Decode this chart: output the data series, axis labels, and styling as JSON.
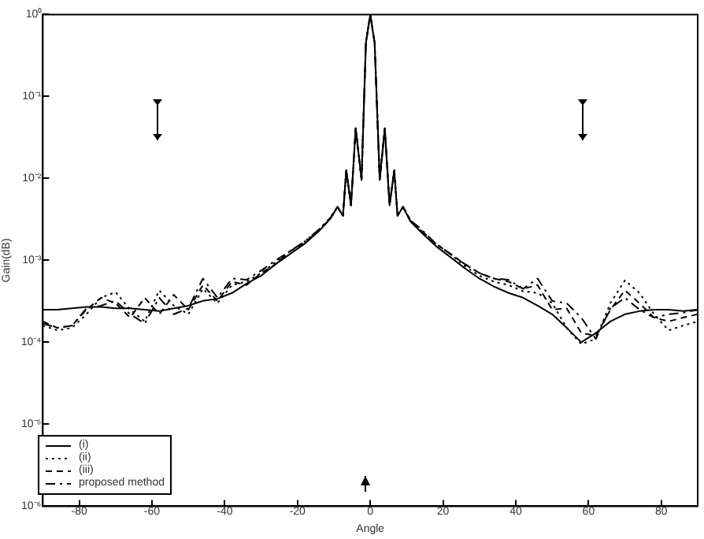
{
  "chart_data": {
    "type": "line",
    "xlabel": "Angle",
    "ylabel": "Gain(dB)",
    "log": "y",
    "xlim": [
      -90,
      90
    ],
    "xticks": [
      -80,
      -60,
      -40,
      -20,
      0,
      20,
      40,
      60,
      80
    ],
    "ylim": [
      1e-06,
      1
    ],
    "yticks": [
      {
        "value": 1e-06,
        "label": "10⁻⁶"
      },
      {
        "value": 1e-05,
        "label": "10⁻⁵"
      },
      {
        "value": 0.0001,
        "label": "10⁻⁴"
      },
      {
        "value": 0.001,
        "label": "10⁻³"
      },
      {
        "value": 0.01,
        "label": "10⁻²"
      },
      {
        "value": 0.1,
        "label": "10⁻¹"
      },
      {
        "value": 1,
        "label": "10⁰"
      }
    ],
    "grid": false,
    "legend": "bottom left",
    "x": [
      -90,
      -86,
      -82,
      -78,
      -74,
      -70,
      -66,
      -62,
      -58,
      -54,
      -50,
      -46,
      -42,
      -38,
      -34,
      -30,
      -26,
      -22,
      -18,
      -14,
      -11,
      -9,
      -7.5,
      -6.6,
      -5.3,
      -4,
      -2.4,
      -1.2,
      0,
      1.2,
      2.6,
      4,
      5.3,
      6.6,
      7.5,
      9,
      11,
      14,
      18,
      22,
      26,
      30,
      34,
      38,
      42,
      46,
      50,
      54,
      58,
      62,
      66,
      70,
      74,
      78,
      82,
      86,
      90
    ],
    "series": [
      {
        "name": "(i)",
        "color": "#000000",
        "line_style": "solid",
        "values": [
          0.00025,
          0.00025,
          0.00026,
          0.00027,
          0.00027,
          0.00026,
          0.00026,
          0.00025,
          0.00024,
          0.00026,
          0.00028,
          0.00032,
          0.00034,
          0.0004,
          0.00052,
          0.00065,
          0.0009,
          0.0012,
          0.0016,
          0.0023,
          0.0032,
          0.0045,
          0.0035,
          0.0126,
          0.0047,
          0.041,
          0.0096,
          0.45,
          1,
          0.45,
          0.0096,
          0.041,
          0.0047,
          0.0126,
          0.0035,
          0.0045,
          0.003,
          0.0022,
          0.0015,
          0.0011,
          0.0008,
          0.0006,
          0.00048,
          0.0004,
          0.00035,
          0.00028,
          0.00022,
          0.00015,
          0.0001,
          0.00013,
          0.00018,
          0.00022,
          0.00024,
          0.00025,
          0.00025,
          0.00024,
          0.00025
        ]
      },
      {
        "name": "(ii)",
        "color": "#000000",
        "line_style": "dotted",
        "values": [
          0.00016,
          0.00014,
          0.00015,
          0.00022,
          0.00035,
          0.00041,
          0.00025,
          0.00018,
          0.00043,
          0.00028,
          0.00022,
          0.00045,
          0.0003,
          0.0005,
          0.00055,
          0.0007,
          0.00095,
          0.0013,
          0.0017,
          0.0024,
          0.0033,
          0.0045,
          0.0035,
          0.0126,
          0.0047,
          0.041,
          0.0096,
          0.45,
          1,
          0.45,
          0.0096,
          0.041,
          0.0047,
          0.0126,
          0.0035,
          0.0045,
          0.0031,
          0.0023,
          0.0016,
          0.0012,
          0.00085,
          0.00065,
          0.00055,
          0.0005,
          0.00042,
          0.0004,
          0.0003,
          0.00015,
          9.5e-05,
          0.00011,
          0.0003,
          0.00057,
          0.0004,
          0.00022,
          0.00014,
          0.00016,
          0.00018
        ]
      },
      {
        "name": "(iii)",
        "color": "#000000",
        "line_style": "dashed",
        "values": [
          0.00018,
          0.00015,
          0.00016,
          0.00025,
          0.00035,
          0.0003,
          0.0002,
          0.00035,
          0.00022,
          0.00038,
          0.00025,
          0.0005,
          0.00032,
          0.00055,
          0.0005,
          0.0007,
          0.0009,
          0.0013,
          0.0016,
          0.0024,
          0.0032,
          0.0045,
          0.0035,
          0.0126,
          0.0047,
          0.041,
          0.0096,
          0.45,
          1,
          0.45,
          0.0096,
          0.041,
          0.0047,
          0.0126,
          0.0035,
          0.0045,
          0.0031,
          0.0023,
          0.0016,
          0.0012,
          0.0009,
          0.0007,
          0.0006,
          0.00055,
          0.00045,
          0.0005,
          0.00025,
          0.00026,
          0.00013,
          0.00012,
          0.00025,
          0.00043,
          0.0003,
          0.0002,
          0.00018,
          0.0002,
          0.00022
        ]
      },
      {
        "name": "proposed method",
        "color": "#000000",
        "line_style": "dashed",
        "values": [
          0.00017,
          0.00015,
          0.00016,
          0.00026,
          0.00028,
          0.00032,
          0.00022,
          0.00017,
          0.00035,
          0.00022,
          0.00026,
          0.0006,
          0.00035,
          0.0006,
          0.00058,
          0.00075,
          0.001,
          0.0013,
          0.0017,
          0.0024,
          0.0033,
          0.0045,
          0.0035,
          0.0126,
          0.0047,
          0.041,
          0.0096,
          0.45,
          1,
          0.45,
          0.0096,
          0.041,
          0.0047,
          0.0126,
          0.0035,
          0.0045,
          0.0031,
          0.0024,
          0.0016,
          0.0012,
          0.0009,
          0.0007,
          0.0006,
          0.00058,
          0.00045,
          0.0006,
          0.00032,
          0.0003,
          0.0002,
          0.00011,
          0.00026,
          0.00035,
          0.00025,
          0.0002,
          0.00022,
          0.00023,
          0.00025
        ]
      }
    ]
  }
}
